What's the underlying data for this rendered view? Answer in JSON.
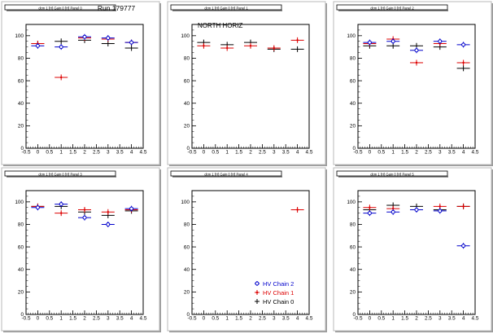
{
  "run_label": "Run 179777",
  "colors": {
    "chain2": "#0000cc",
    "chain1": "#dd0000",
    "chain0": "#000000"
  },
  "legend": {
    "entries": [
      {
        "key": "chain2",
        "label": "HV Chain 2",
        "marker": "circle"
      },
      {
        "key": "chain1",
        "label": "HV Chain 1",
        "marker": "star"
      },
      {
        "key": "chain0",
        "label": "HV Chain 0",
        "marker": "cross"
      }
    ]
  },
  "chart_data": [
    {
      "type": "scatter",
      "title": "dcm 1 [H] Gain 0 [H] Panel 0",
      "annotation": "",
      "xlim": [
        -0.5,
        4.5
      ],
      "ylim": [
        0,
        110
      ],
      "x_ticks": [
        "-0.5",
        "0",
        "0.5",
        "1",
        "1.5",
        "2",
        "2.5",
        "3",
        "3.5",
        "4",
        "4.5"
      ],
      "y_ticks": [
        "0",
        "20",
        "40",
        "60",
        "80",
        "100"
      ],
      "series": [
        {
          "key": "chain0",
          "points": [
            {
              "x": 0,
              "y": 93
            },
            {
              "x": 1,
              "y": 95
            },
            {
              "x": 2,
              "y": 96
            },
            {
              "x": 3,
              "y": 93
            },
            {
              "x": 4,
              "y": 89
            }
          ]
        },
        {
          "key": "chain1",
          "points": [
            {
              "x": 0,
              "y": 93
            },
            {
              "x": 1,
              "y": 63
            },
            {
              "x": 2,
              "y": 98
            },
            {
              "x": 3,
              "y": 97
            },
            {
              "x": 4,
              "y": 94
            }
          ]
        },
        {
          "key": "chain2",
          "points": [
            {
              "x": 0,
              "y": 91
            },
            {
              "x": 1,
              "y": 90
            },
            {
              "x": 2,
              "y": 99
            },
            {
              "x": 3,
              "y": 98
            },
            {
              "x": 4,
              "y": 94
            }
          ]
        }
      ]
    },
    {
      "type": "scatter",
      "title": "dcm 1 [H] Gain 0 [H] Panel 1",
      "annotation": "NORTH HORIZ",
      "xlim": [
        -0.5,
        4.5
      ],
      "ylim": [
        0,
        110
      ],
      "x_ticks": [
        "-0.5",
        "0",
        "0.5",
        "1",
        "1.5",
        "2",
        "2.5",
        "3",
        "3.5",
        "4",
        "4.5"
      ],
      "y_ticks": [
        "0",
        "20",
        "40",
        "60",
        "80",
        "100"
      ],
      "series": [
        {
          "key": "chain0",
          "points": [
            {
              "x": 0,
              "y": 94
            },
            {
              "x": 1,
              "y": 92
            },
            {
              "x": 2,
              "y": 94
            },
            {
              "x": 3,
              "y": 88
            },
            {
              "x": 4,
              "y": 88
            }
          ]
        },
        {
          "key": "chain1",
          "points": [
            {
              "x": 0,
              "y": 91
            },
            {
              "x": 1,
              "y": 89
            },
            {
              "x": 2,
              "y": 91
            },
            {
              "x": 3,
              "y": 89
            },
            {
              "x": 4,
              "y": 96
            }
          ]
        },
        {
          "key": "chain2",
          "points": []
        }
      ]
    },
    {
      "type": "scatter",
      "title": "dcm 1 [H] Gain 0 [H] Panel 2",
      "annotation": "",
      "xlim": [
        -0.5,
        4.5
      ],
      "ylim": [
        0,
        110
      ],
      "x_ticks": [
        "-0.5",
        "0",
        "0.5",
        "1",
        "1.5",
        "2",
        "2.5",
        "3",
        "3.5",
        "4",
        "4.5"
      ],
      "y_ticks": [
        "0",
        "20",
        "40",
        "60",
        "80",
        "100"
      ],
      "series": [
        {
          "key": "chain0",
          "points": [
            {
              "x": 0,
              "y": 91
            },
            {
              "x": 1,
              "y": 91
            },
            {
              "x": 2,
              "y": 91
            },
            {
              "x": 3,
              "y": 90
            },
            {
              "x": 4,
              "y": 71
            }
          ]
        },
        {
          "key": "chain1",
          "points": [
            {
              "x": 0,
              "y": 93
            },
            {
              "x": 1,
              "y": 97
            },
            {
              "x": 2,
              "y": 76
            },
            {
              "x": 3,
              "y": 93
            },
            {
              "x": 4,
              "y": 76
            }
          ]
        },
        {
          "key": "chain2",
          "points": [
            {
              "x": 0,
              "y": 94
            },
            {
              "x": 1,
              "y": 95
            },
            {
              "x": 2,
              "y": 87
            },
            {
              "x": 3,
              "y": 95
            },
            {
              "x": 4,
              "y": 92
            }
          ]
        }
      ]
    },
    {
      "type": "scatter",
      "title": "dcm 1 [H] Gain 0 [H] Panel 3",
      "annotation": "",
      "xlim": [
        -0.5,
        4.5
      ],
      "ylim": [
        0,
        110
      ],
      "x_ticks": [
        "-0.5",
        "0",
        "0.5",
        "1",
        "1.5",
        "2",
        "2.5",
        "3",
        "3.5",
        "4",
        "4.5"
      ],
      "y_ticks": [
        "0",
        "20",
        "40",
        "60",
        "80",
        "100"
      ],
      "series": [
        {
          "key": "chain0",
          "points": [
            {
              "x": 0,
              "y": 96
            },
            {
              "x": 1,
              "y": 96
            },
            {
              "x": 2,
              "y": 91
            },
            {
              "x": 3,
              "y": 88
            },
            {
              "x": 4,
              "y": 92
            }
          ]
        },
        {
          "key": "chain1",
          "points": [
            {
              "x": 0,
              "y": 96
            },
            {
              "x": 1,
              "y": 90
            },
            {
              "x": 2,
              "y": 93
            },
            {
              "x": 3,
              "y": 91
            },
            {
              "x": 4,
              "y": 93
            }
          ]
        },
        {
          "key": "chain2",
          "points": [
            {
              "x": 0,
              "y": 95
            },
            {
              "x": 1,
              "y": 98
            },
            {
              "x": 2,
              "y": 86
            },
            {
              "x": 3,
              "y": 80
            },
            {
              "x": 4,
              "y": 94
            }
          ]
        }
      ]
    },
    {
      "type": "scatter",
      "title": "dcm 1 [H] Gain 0 [H] Panel 4",
      "annotation": "",
      "xlim": [
        -0.5,
        4.5
      ],
      "ylim": [
        0,
        110
      ],
      "x_ticks": [
        "-0.5",
        "0",
        "0.5",
        "1",
        "1.5",
        "2",
        "2.5",
        "3",
        "3.5",
        "4",
        "4.5"
      ],
      "y_ticks": [
        "0",
        "20",
        "40",
        "60",
        "80",
        "100"
      ],
      "legend": true,
      "series": [
        {
          "key": "chain0",
          "points": []
        },
        {
          "key": "chain1",
          "points": [
            {
              "x": 4,
              "y": 93
            }
          ]
        },
        {
          "key": "chain2",
          "points": []
        }
      ]
    },
    {
      "type": "scatter",
      "title": "dcm 1 [H] Gain 0 [H] Panel 5",
      "annotation": "",
      "xlim": [
        -0.5,
        4.5
      ],
      "ylim": [
        0,
        110
      ],
      "x_ticks": [
        "-0.5",
        "0",
        "0.5",
        "1",
        "1.5",
        "2",
        "2.5",
        "3",
        "3.5",
        "4",
        "4.5"
      ],
      "y_ticks": [
        "0",
        "20",
        "40",
        "60",
        "80",
        "100"
      ],
      "series": [
        {
          "key": "chain0",
          "points": [
            {
              "x": 0,
              "y": 93
            },
            {
              "x": 1,
              "y": 97
            },
            {
              "x": 2,
              "y": 96
            },
            {
              "x": 3,
              "y": 93
            },
            {
              "x": 4,
              "y": 96
            }
          ]
        },
        {
          "key": "chain1",
          "points": [
            {
              "x": 0,
              "y": 95
            },
            {
              "x": 1,
              "y": 94
            },
            {
              "x": 2,
              "y": 93
            },
            {
              "x": 3,
              "y": 96
            },
            {
              "x": 4,
              "y": 96
            }
          ]
        },
        {
          "key": "chain2",
          "points": [
            {
              "x": 0,
              "y": 90
            },
            {
              "x": 1,
              "y": 91
            },
            {
              "x": 2,
              "y": 93
            },
            {
              "x": 3,
              "y": 92
            },
            {
              "x": 4,
              "y": 61
            }
          ]
        }
      ]
    }
  ]
}
